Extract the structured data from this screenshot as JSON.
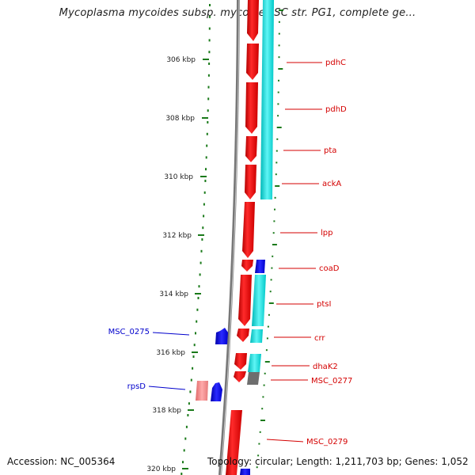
{
  "title": "Mycoplasma mycoides subsp. mycoides SC str. PG1, complete ge...",
  "accession_text": "Accession: NC_005364",
  "topology_text": "Topology: circular; Length: 1,211,703 bp; Genes: 1,052",
  "colors": {
    "forward_gene": "#ff0000",
    "reverse_gene": "#0000ff",
    "forward_label": "#d40000",
    "reverse_label": "#0000cc",
    "cds_cyan": "#00e5e5",
    "tick_green": "#1a7a1a",
    "backbone": "#888888"
  },
  "ticks": [
    {
      "label": "306 kbp"
    },
    {
      "label": "308 kbp"
    },
    {
      "label": "310 kbp"
    },
    {
      "label": "312 kbp"
    },
    {
      "label": "314 kbp"
    },
    {
      "label": "316 kbp"
    },
    {
      "label": "318 kbp"
    },
    {
      "label": "320 kbp"
    }
  ],
  "genes_right": [
    {
      "name": "pdhC"
    },
    {
      "name": "pdhD"
    },
    {
      "name": "pta"
    },
    {
      "name": "ackA"
    },
    {
      "name": "lpp"
    },
    {
      "name": "coaD"
    },
    {
      "name": "ptsI"
    },
    {
      "name": "crr"
    },
    {
      "name": "dhaK2"
    },
    {
      "name": "MSC_0277"
    },
    {
      "name": "MSC_0279"
    }
  ],
  "genes_left": [
    {
      "name": "MSC_0275"
    },
    {
      "name": "rpsD"
    }
  ]
}
